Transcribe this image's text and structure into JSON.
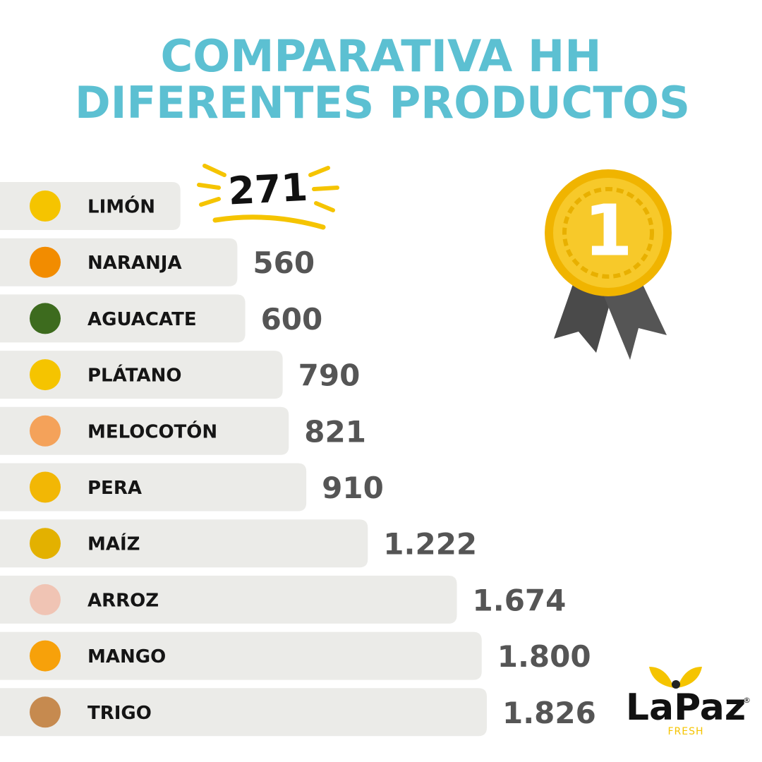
{
  "chart_data": {
    "type": "bar",
    "orientation": "horizontal",
    "title": [
      "COMPARATIVA HH",
      "DIFERENTES PRODUCTOS"
    ],
    "categories": [
      "LIMÓN",
      "NARANJA",
      "AGUACATE",
      "PLÁTANO",
      "MELOCOTÓN",
      "PERA",
      "MAÍZ",
      "ARROZ",
      "MANGO",
      "TRIGO"
    ],
    "values": [
      271,
      560,
      600,
      790,
      821,
      910,
      1222,
      1674,
      1800,
      1826
    ],
    "value_labels": [
      "271",
      "560",
      "600",
      "790",
      "821",
      "910",
      "1.222",
      "1.674",
      "1.800",
      "1.826"
    ],
    "color": "#ebebe8",
    "value_color": "#555555",
    "title_color": "#5cc0d2"
  },
  "badge": {
    "label": "1"
  },
  "logo": {
    "name": "LaPaz",
    "mark": "®",
    "tagline": "FRESH"
  }
}
